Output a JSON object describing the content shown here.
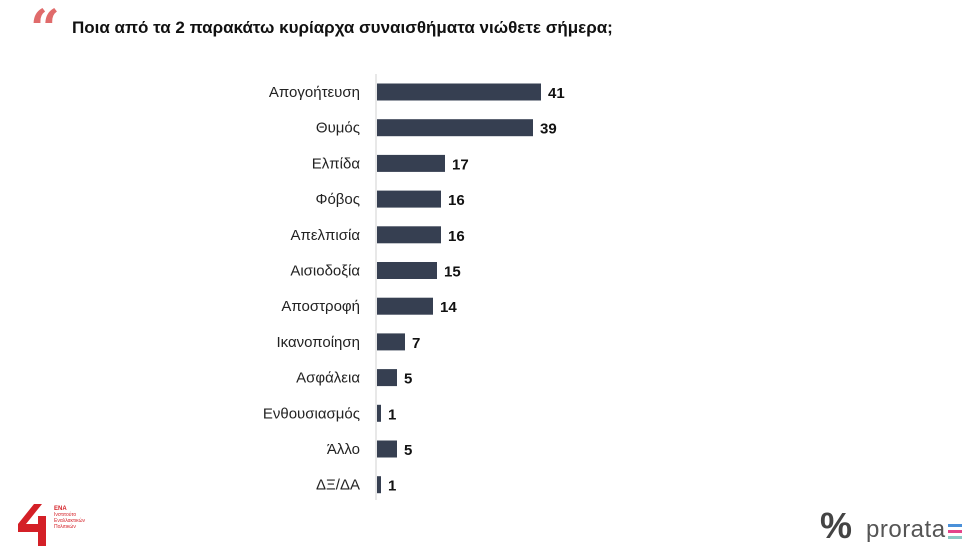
{
  "header": {
    "quote_glyph": "“",
    "question": "Ποια από τα 2 παρακάτω κυρίαρχα συναισθήματα νιώθετε σήμερα;"
  },
  "chart_data": {
    "type": "bar",
    "orientation": "horizontal",
    "categories": [
      "Απογοήτευση",
      "Θυμός",
      "Ελπίδα",
      "Φόβος",
      "Απελπισία",
      "Αισιοδοξία",
      "Αποστροφή",
      "Ικανοποίηση",
      "Ασφάλεια",
      "Ενθουσιασμός",
      "Άλλο",
      "ΔΞ/ΔΑ"
    ],
    "values": [
      41,
      39,
      17,
      16,
      16,
      15,
      14,
      7,
      5,
      1,
      5,
      1
    ],
    "xlim": [
      0,
      41
    ],
    "bar_color": "#363f51",
    "grid": false,
    "legend": "none"
  },
  "logos": {
    "left_mark": "ΕΝΑ",
    "left_lines": [
      "Ινστιτούτο",
      "Εναλλακτικών",
      "Πολιτικών"
    ],
    "right_symbol": "%",
    "right_brand": "prorata",
    "accent_red": "#d42027",
    "bar_colors": [
      "#4a90d9",
      "#e4448a",
      "#8bc9c5"
    ]
  }
}
